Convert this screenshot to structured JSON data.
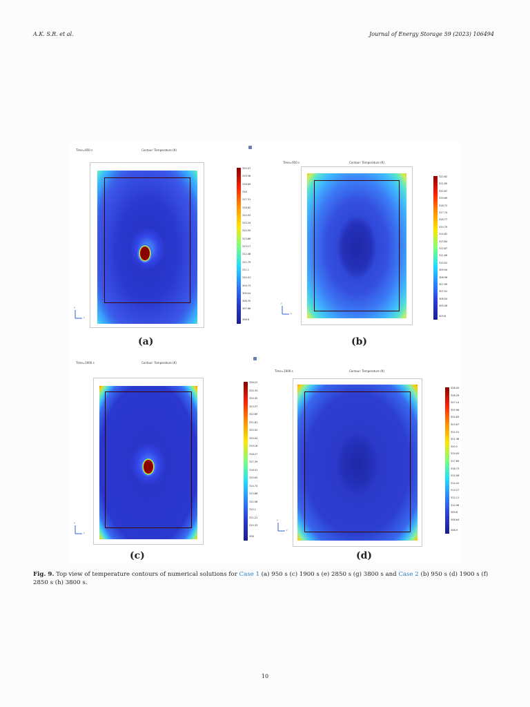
{
  "header": {
    "left": "A.K. S.R. et al.",
    "right": "Journal of Energy Storage 59 (2023) 106494"
  },
  "panels": [
    {
      "id": "a",
      "label": "(a)",
      "time": "Time=950 s",
      "title": "Contour: Temperature (K)",
      "ticks": [
        "320.07",
        "319.38",
        "318.69",
        "318",
        "317.31",
        "316.62",
        "315.93",
        "315.24",
        "314.55",
        "313.86",
        "313.17",
        "312.48",
        "311.79",
        "311.1",
        "310.41",
        "309.73",
        "309.04",
        "308.35",
        "307.66",
        "306.6"
      ]
    },
    {
      "id": "b",
      "label": "(b)",
      "time": "Time=950 s",
      "title": "Contour: Temperature (K)",
      "ticks": [
        "322.62",
        "321.65",
        "320.67",
        "319.69",
        "318.72",
        "317.74",
        "316.77",
        "315.79",
        "314.82",
        "313.84",
        "312.87",
        "311.89",
        "310.91",
        "309.94",
        "308.96",
        "307.99",
        "307.01",
        "306.04",
        "305.06",
        "303.6"
      ]
    },
    {
      "id": "c",
      "label": "(c)",
      "time": "Time=1900 s",
      "title": "Contour: Temperature (K)",
      "ticks": [
        "326.22",
        "325.33",
        "324.45",
        "323.57",
        "322.69",
        "321.81",
        "320.92",
        "320.04",
        "319.16",
        "318.27",
        "317.39",
        "316.51",
        "315.63",
        "314.74",
        "313.86",
        "312.98",
        "312.1",
        "311.21",
        "310.33",
        "308"
      ]
    },
    {
      "id": "d",
      "label": "(d)",
      "time": "Time=1900 s",
      "title": "Contour: Temperature (K)",
      "ticks": [
        "328.45",
        "328.29",
        "327.14",
        "325.98",
        "324.83",
        "323.67",
        "322.51",
        "321.36",
        "320.2",
        "319.05",
        "317.89",
        "316.73",
        "315.58",
        "314.42",
        "313.27",
        "312.11",
        "310.96",
        "309.8",
        "308.64",
        "306.9"
      ]
    }
  ],
  "axis": {
    "y": "y",
    "x": "z"
  },
  "caption": {
    "label": "Fig. 9.",
    "t1": " Top view of temperature contours of numerical solutions for ",
    "link1": "Case 1",
    "t2": " (a) 950 s (c) 1900 s (e) 2850 s (g) 3800 s and ",
    "link2": "Case 2",
    "t3": " (b) 950 s (d) 1900 s (f) 2850 s (h) 3800 s."
  },
  "page_number": "10",
  "colors": {
    "hot": "#8b0000",
    "cold": "#1a1f8c",
    "link": "#2b7fc4"
  }
}
